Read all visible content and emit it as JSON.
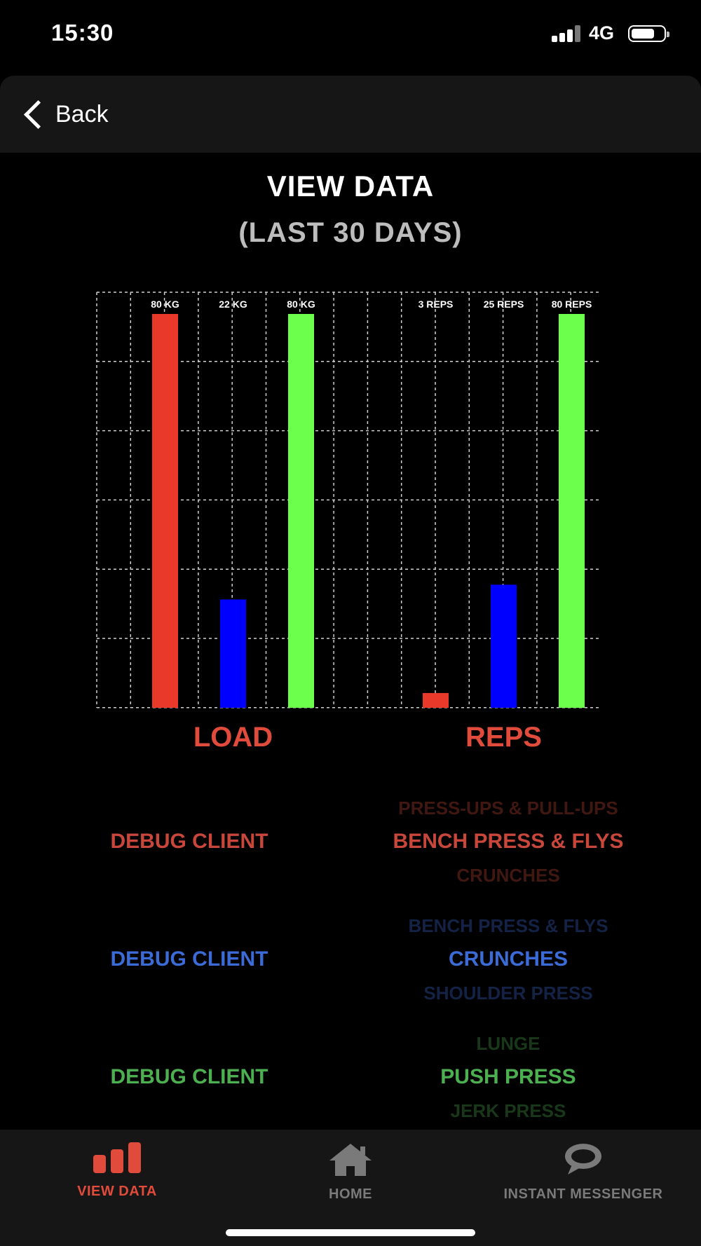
{
  "status_bar": {
    "time": "15:30",
    "network": "4G"
  },
  "nav": {
    "back_label": "Back"
  },
  "page": {
    "title": "VIEW DATA",
    "subtitle": "(LAST 30 DAYS)"
  },
  "colors": {
    "red": "#e8392a",
    "blue": "#0000ff",
    "green": "#6cff4c",
    "accent": "#e14b3c",
    "row_red": "#c9473a",
    "row_blue": "#3b6bd6",
    "row_green": "#4caf50"
  },
  "chart_data": {
    "type": "bar",
    "groups": [
      {
        "label": "LOAD",
        "bars": [
          {
            "value": 80,
            "label": "80 KG",
            "color": "red"
          },
          {
            "value": 22,
            "label": "22 KG",
            "color": "blue"
          },
          {
            "value": 80,
            "label": "80 KG",
            "color": "green"
          }
        ]
      },
      {
        "label": "REPS",
        "bars": [
          {
            "value": 3,
            "label": "3 REPS",
            "color": "red"
          },
          {
            "value": 25,
            "label": "25 REPS",
            "color": "blue"
          },
          {
            "value": 80,
            "label": "80 REPS",
            "color": "green"
          }
        ]
      }
    ],
    "ylim": [
      0,
      80
    ],
    "grid": true
  },
  "rows": [
    {
      "client": "DEBUG CLIENT",
      "color": "red",
      "above": "PRESS-UPS & PULL-UPS",
      "selected": "BENCH PRESS & FLYS",
      "below": "CRUNCHES"
    },
    {
      "client": "DEBUG CLIENT",
      "color": "blue",
      "above": "BENCH PRESS & FLYS",
      "selected": "CRUNCHES",
      "below": "SHOULDER PRESS"
    },
    {
      "client": "DEBUG CLIENT",
      "color": "green",
      "above": "LUNGE",
      "selected": "PUSH PRESS",
      "below": "JERK PRESS"
    }
  ],
  "tabs": [
    {
      "label": "VIEW DATA",
      "icon": "bar-chart-icon",
      "active": true
    },
    {
      "label": "HOME",
      "icon": "home-icon",
      "active": false
    },
    {
      "label": "INSTANT MESSENGER",
      "icon": "chat-bubble-icon",
      "active": false
    }
  ]
}
